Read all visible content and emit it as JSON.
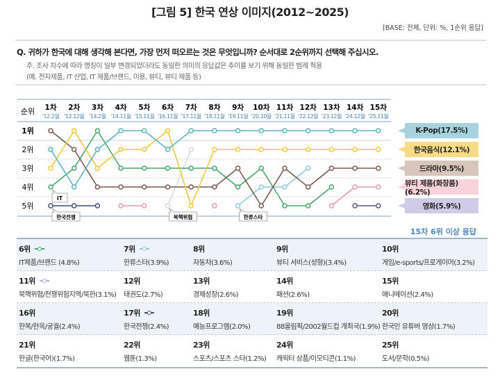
{
  "title": "[그림 5] 한국 연상 이미지(2012~2025)",
  "base": "[BASE: 전체, 단위: %, 1순위 응답]",
  "question": "Q. 귀하가 한국에 대해 생각해 본다면, 가장 먼저 떠오르는 것은 무엇입니까? 순서대로 2순위까지 선택해 주십시오.",
  "note1": "주. 조사 차수에 따라 명칭이 일부 변경되었더라도 동일한 의미의 응답값은 추이를 보기 위해 동일한 범례 적용",
  "note2": "(예. 전자제품, IT 산업, IT 제품/브랜드, 미용, 뷰티, 뷰티 제품 등)",
  "chart_data": {
    "type": "line",
    "ylabel": "순위",
    "y_reversed": true,
    "rank_labels": [
      "1위",
      "2위",
      "3위",
      "4위",
      "5위"
    ],
    "categories": [
      "1차",
      "2차",
      "3차",
      "4차",
      "5차",
      "6차",
      "7차",
      "8차",
      "9차",
      "10차",
      "11차",
      "12차",
      "13차",
      "14차",
      "15차"
    ],
    "dates": [
      "'12.2월",
      "'12.12월",
      "'14.2월",
      "'14.11월",
      "'15.11월",
      "'16.11월",
      "'17.11월",
      "'18.11월",
      "'19.11월",
      "'20.10월",
      "'21.11월",
      "'22.12월",
      "'23.12월",
      "'24.12월",
      "'25.11월"
    ],
    "series": [
      {
        "name": "K-Pop(17.5%)",
        "color": "#5ab4c2",
        "legend_bg": "#a8d3de",
        "ranks": [
          2,
          4,
          2,
          1,
          1,
          2,
          1,
          1,
          1,
          1,
          1,
          1,
          1,
          1,
          1
        ]
      },
      {
        "name": "한국음식(12.1%)",
        "color": "#f0c83c",
        "legend_bg": "#f8db86",
        "ranks": [
          3,
          1,
          3,
          2,
          2,
          1,
          5,
          2,
          2,
          2,
          2,
          2,
          2,
          2,
          2
        ]
      },
      {
        "name": "드라마(9.5%)",
        "color": "#7a5a50",
        "legend_bg": "#d8c5bc",
        "ranks": [
          1,
          2,
          4,
          4,
          4,
          4,
          4,
          4,
          3,
          5,
          3,
          4,
          3,
          3,
          3
        ]
      },
      {
        "name": "뷰티 제품(화장품)(6.2%)",
        "color": "#e69aac",
        "legend_bg": "#f8d3db",
        "ranks": [
          null,
          null,
          null,
          5,
          5,
          null,
          null,
          5,
          null,
          null,
          null,
          null,
          5,
          4,
          4
        ]
      },
      {
        "name": "영화(5.9%)",
        "color": "#55587a",
        "legend_bg": "#d0cce8",
        "ranks": [
          null,
          null,
          null,
          null,
          null,
          null,
          null,
          null,
          null,
          null,
          null,
          null,
          null,
          5,
          5
        ]
      },
      {
        "name": "IT",
        "color": "#46a66e",
        "ranks": [
          4,
          3,
          1,
          3,
          3,
          3,
          3,
          3,
          4,
          3,
          5,
          5,
          4,
          null,
          null
        ]
      },
      {
        "name": "한국전쟁",
        "color": "#3c4e78",
        "ranks": [
          5,
          5,
          5,
          null,
          null,
          null,
          null,
          null,
          null,
          null,
          null,
          null,
          null,
          null,
          null
        ]
      },
      {
        "name": "북핵위협",
        "color": "#d6dae4",
        "ranks": [
          null,
          null,
          null,
          null,
          null,
          5,
          2,
          null,
          null,
          null,
          null,
          null,
          null,
          null,
          null
        ]
      },
      {
        "name": "한류스타",
        "color": "#8ccbdd",
        "ranks": [
          null,
          null,
          null,
          null,
          null,
          null,
          null,
          null,
          5,
          4,
          4,
          3,
          null,
          null,
          null
        ]
      }
    ],
    "callouts": [
      {
        "text": "IT",
        "wave": "1차",
        "rank": 4
      },
      {
        "text": "한국전쟁",
        "wave": "1차",
        "rank": 5
      },
      {
        "text": "북핵위협",
        "wave": "6차",
        "rank": 5
      },
      {
        "text": "한류스타",
        "wave": "9차",
        "rank": 5
      }
    ]
  },
  "more_title": "15차 6위 이상 응답",
  "table": [
    [
      {
        "rank": "6위",
        "item": "IT제품/브랜드 (4.8%)",
        "marker": "#46a66e"
      },
      {
        "rank": "7위",
        "item": "한류스타(3.9%)",
        "marker": "#8ccbdd"
      },
      {
        "rank": "8위",
        "item": "자동차(3.6%)"
      },
      {
        "rank": "9위",
        "item": "뷰티 서비스(성형)(3.4%)"
      },
      {
        "rank": "10위",
        "item": "게임/e-sports/프로게이머(3.2%)"
      }
    ],
    [
      {
        "rank": "11위",
        "item": "북핵위협/전쟁위험지역/북한(3.1%)",
        "marker": "#a9b8d8"
      },
      {
        "rank": "12위",
        "item": "태권도(2.7%)"
      },
      {
        "rank": "13위",
        "item": "경제성장(2.6%)"
      },
      {
        "rank": "14위",
        "item": "패션(2.6%)"
      },
      {
        "rank": "15위",
        "item": "애니메이션(2.4%)"
      }
    ],
    [
      {
        "rank": "16위",
        "item": "한복/한옥/궁궐(2.4%)"
      },
      {
        "rank": "17위",
        "item": "한국전쟁(2.4%)",
        "marker": "#3c4e78"
      },
      {
        "rank": "18위",
        "item": "예능프로그램(2.0%)"
      },
      {
        "rank": "19위",
        "item": "88올림픽/2002월드컵 개최국(1.9%)"
      },
      {
        "rank": "20위",
        "item": "한국인 유튜버 영상(1.7%)"
      }
    ],
    [
      {
        "rank": "21위",
        "item": "한글(한국어)(1.7%)"
      },
      {
        "rank": "22위",
        "item": "웹툰(1.3%)"
      },
      {
        "rank": "23위",
        "item": "스포츠/스포츠 스타(1.2%)"
      },
      {
        "rank": "24위",
        "item": "캐릭터 상품/이모티콘(1.1%)"
      },
      {
        "rank": "25위",
        "item": "도서/문학(0.5%)"
      }
    ]
  ]
}
